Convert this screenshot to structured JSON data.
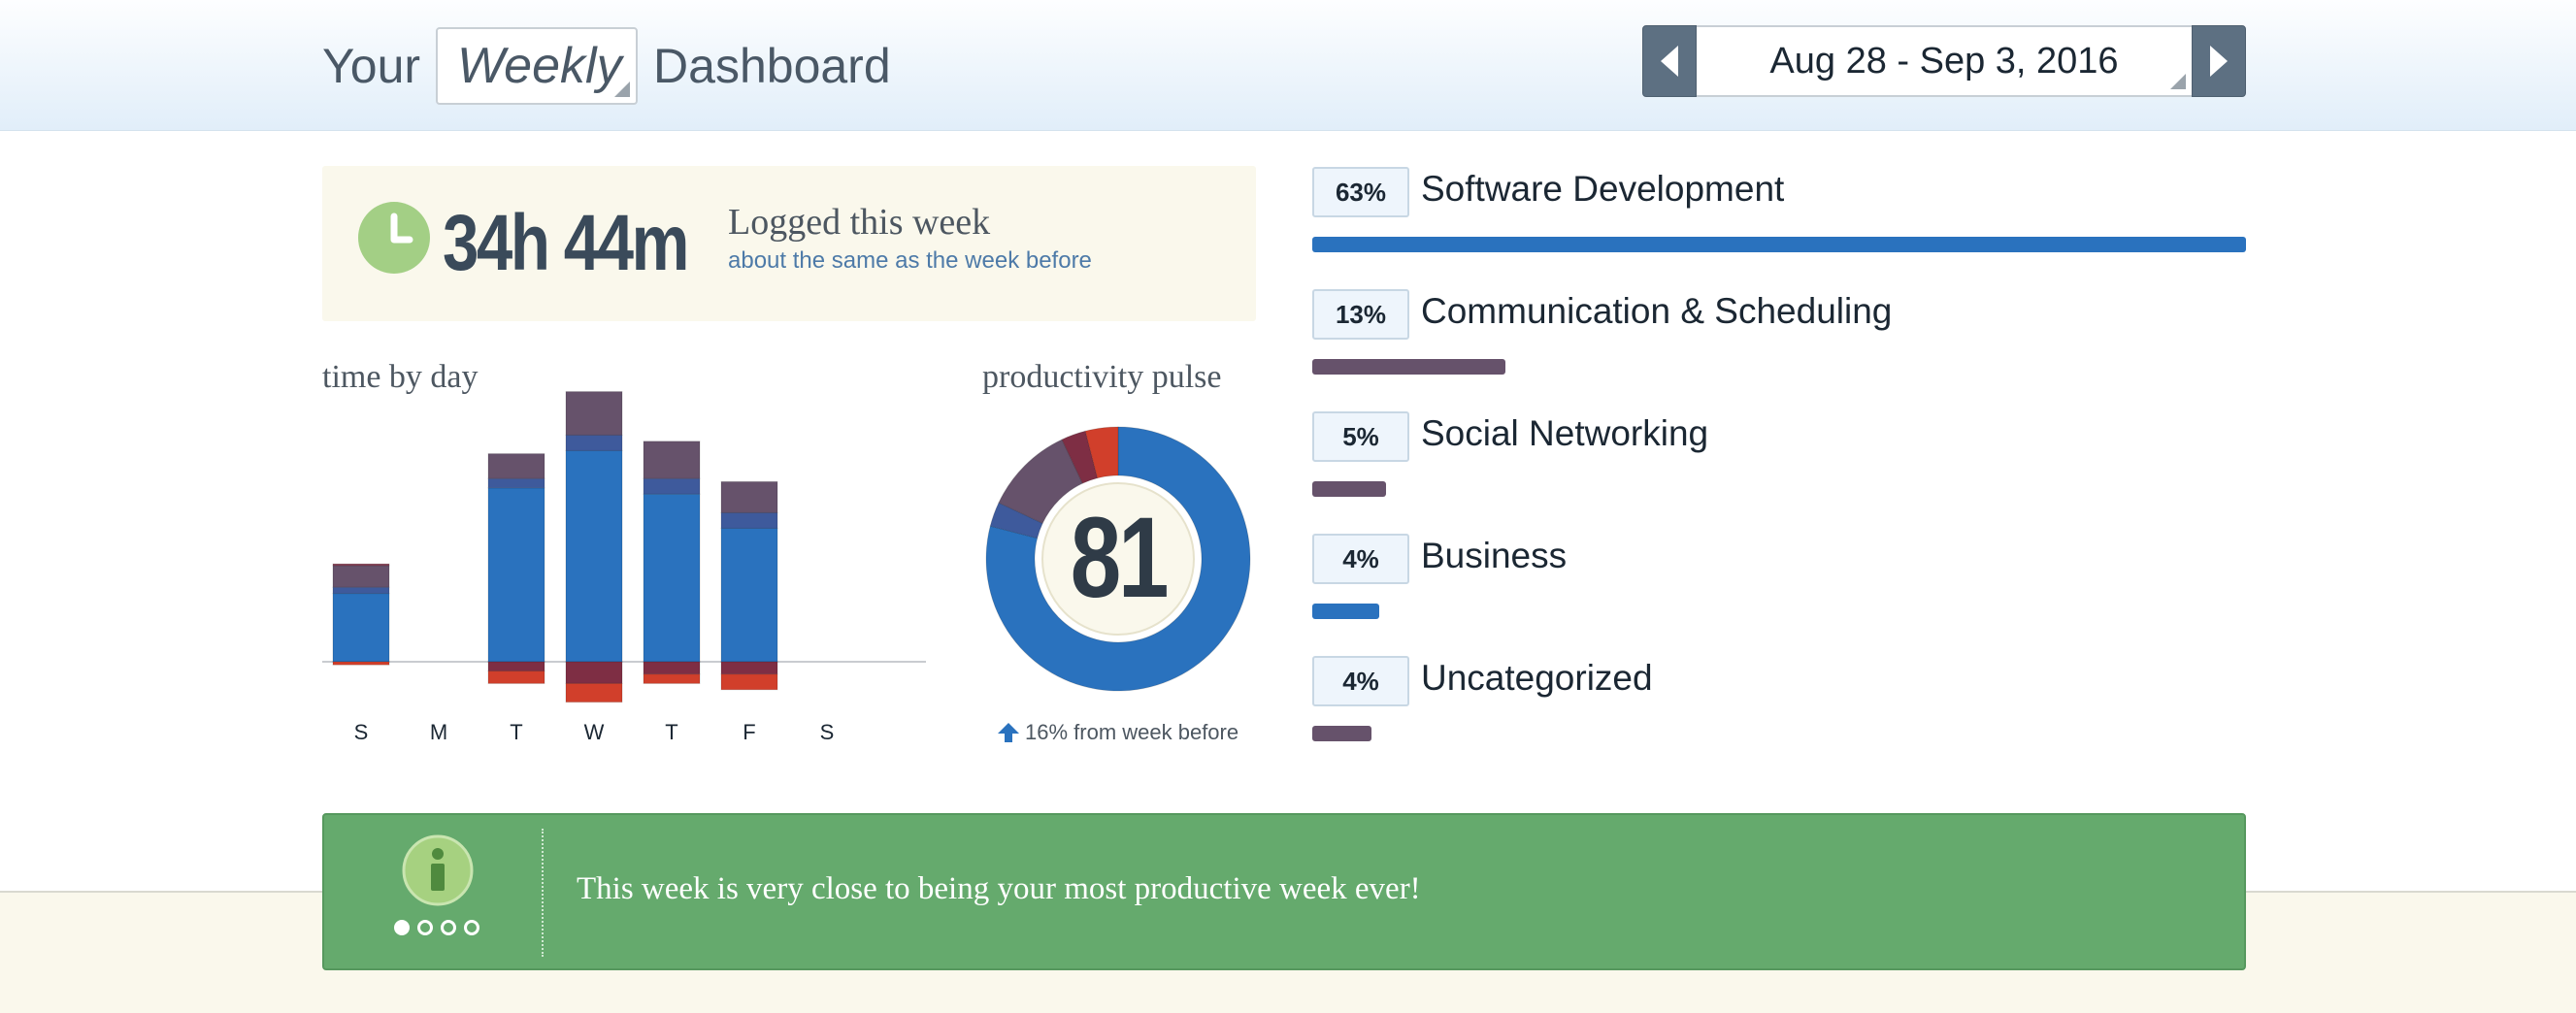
{
  "header": {
    "title_prefix": "Your",
    "period": "Weekly",
    "title_suffix": "Dashboard",
    "date_range": "Aug 28 - Sep 3, 2016"
  },
  "logged": {
    "total": "34h 44m",
    "label": "Logged this week",
    "comparison": "about the same as the week before"
  },
  "time_by_day": {
    "title": "time by day"
  },
  "chart_data": {
    "type": "bar",
    "stacked": true,
    "categories": [
      "S",
      "M",
      "T",
      "W",
      "T",
      "F",
      "S"
    ],
    "series": [
      {
        "color": "#2a72be",
        "values": [
          2.2,
          0,
          5.6,
          6.8,
          5.4,
          4.3,
          0
        ]
      },
      {
        "color": "#3e5a9c",
        "values": [
          0.2,
          0,
          0.3,
          0.5,
          0.5,
          0.5,
          0
        ]
      },
      {
        "color": "#66526b",
        "values": [
          0.7,
          0,
          0.8,
          1.4,
          1.2,
          1.0,
          0
        ]
      },
      {
        "color": "#7e2e44",
        "values": [
          0.05,
          0,
          -0.3,
          -0.7,
          -0.4,
          -0.4,
          0
        ]
      },
      {
        "color": "#d13f2b",
        "values": [
          -0.1,
          0,
          -0.4,
          -0.6,
          -0.3,
          -0.5,
          0
        ]
      }
    ],
    "ylim": [
      -1.5,
      8.5
    ],
    "grid": false,
    "legend": "none"
  },
  "pulse": {
    "title": "productivity pulse",
    "score": "81",
    "segments": [
      {
        "color": "#2a72be",
        "value": 0.79
      },
      {
        "color": "#3e5a9c",
        "value": 0.03
      },
      {
        "color": "#66526b",
        "value": 0.11
      },
      {
        "color": "#7e2e44",
        "value": 0.03
      },
      {
        "color": "#d13f2b",
        "value": 0.04
      }
    ],
    "change": "16% from week before"
  },
  "categories": [
    {
      "percent": "63%",
      "name": "Software Development",
      "fraction": 0.63,
      "color": "#2a72be"
    },
    {
      "percent": "13%",
      "name": "Communication & Scheduling",
      "fraction": 0.13,
      "color": "#66526b"
    },
    {
      "percent": "5%",
      "name": "Social Networking",
      "fraction": 0.05,
      "color": "#66526b"
    },
    {
      "percent": "4%",
      "name": "Business",
      "fraction": 0.045,
      "color": "#2a72be"
    },
    {
      "percent": "4%",
      "name": "Uncategorized",
      "fraction": 0.04,
      "color": "#66526b"
    }
  ],
  "banner": {
    "message": "This week is very close to being your most productive week ever!",
    "page_count": 4,
    "active_page": 1
  }
}
